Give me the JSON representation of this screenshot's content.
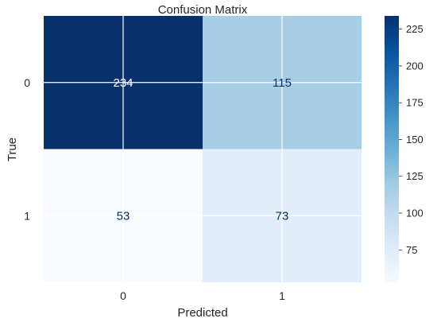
{
  "chart_data": {
    "type": "heatmap",
    "title": "Confusion Matrix",
    "xlabel": "Predicted",
    "ylabel": "True",
    "x_categories": [
      "0",
      "1"
    ],
    "y_categories": [
      "0",
      "1"
    ],
    "values": [
      [
        234,
        115
      ],
      [
        53,
        73
      ]
    ],
    "colormap": "Blues",
    "color_range": [
      53,
      234
    ],
    "colorbar_ticks": [
      75,
      100,
      125,
      150,
      175,
      200,
      225
    ],
    "grid": true,
    "colors": {
      "min": "#f7fbff",
      "max": "#08306b",
      "light_text": "#ffffff",
      "dark_text": "#08306b"
    }
  }
}
